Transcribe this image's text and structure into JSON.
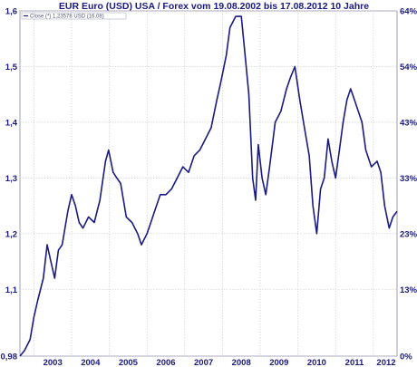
{
  "chart_data": {
    "type": "line",
    "title": "EUR Euro (USD) USA / Forex vom 19.08.2002 bis 17.08.2012 10 Jahre",
    "legend": {
      "text": "Close (*) 1,23578 USD (16.08)",
      "placement": "top-left"
    },
    "xlabel": "",
    "ylabel": "",
    "x_ticks": [
      "2003",
      "2004",
      "2005",
      "2006",
      "2007",
      "2008",
      "2009",
      "2010",
      "2011",
      "2012"
    ],
    "y_ticks_left": [
      "0,98",
      "1,1",
      "1,2",
      "1,3",
      "1,4",
      "1,5",
      "1,6"
    ],
    "y_ticks_right": [
      "0%",
      "13%",
      "23%",
      "33%",
      "43%",
      "54%",
      "64%"
    ],
    "ylim": [
      0.98,
      1.6
    ],
    "xlim": [
      2002.63,
      2012.63
    ],
    "grid": true,
    "series": [
      {
        "name": "Close",
        "color": "#1a1a80",
        "x": [
          2002.63,
          2002.75,
          2002.9,
          2003.0,
          2003.1,
          2003.25,
          2003.35,
          2003.45,
          2003.55,
          2003.65,
          2003.75,
          2003.9,
          2004.0,
          2004.1,
          2004.2,
          2004.3,
          2004.45,
          2004.6,
          2004.75,
          2004.9,
          2004.98,
          2005.1,
          2005.2,
          2005.3,
          2005.45,
          2005.6,
          2005.75,
          2005.85,
          2006.0,
          2006.1,
          2006.2,
          2006.35,
          2006.5,
          2006.65,
          2006.8,
          2006.95,
          2007.1,
          2007.25,
          2007.4,
          2007.55,
          2007.7,
          2007.85,
          2007.95,
          2008.1,
          2008.2,
          2008.35,
          2008.5,
          2008.6,
          2008.7,
          2008.8,
          2008.88,
          2008.95,
          2009.05,
          2009.15,
          2009.25,
          2009.4,
          2009.55,
          2009.7,
          2009.8,
          2009.92,
          2010.05,
          2010.2,
          2010.3,
          2010.4,
          2010.5,
          2010.6,
          2010.7,
          2010.8,
          2010.9,
          2011.0,
          2011.1,
          2011.2,
          2011.3,
          2011.4,
          2011.5,
          2011.6,
          2011.7,
          2011.8,
          2011.95,
          2012.1,
          2012.2,
          2012.3,
          2012.42,
          2012.52,
          2012.63
        ],
        "values": [
          0.98,
          0.99,
          1.01,
          1.05,
          1.08,
          1.12,
          1.18,
          1.15,
          1.12,
          1.17,
          1.18,
          1.24,
          1.27,
          1.25,
          1.22,
          1.21,
          1.23,
          1.22,
          1.26,
          1.33,
          1.35,
          1.31,
          1.3,
          1.29,
          1.23,
          1.22,
          1.2,
          1.18,
          1.2,
          1.22,
          1.24,
          1.27,
          1.27,
          1.28,
          1.3,
          1.32,
          1.31,
          1.34,
          1.35,
          1.37,
          1.39,
          1.44,
          1.47,
          1.52,
          1.57,
          1.59,
          1.59,
          1.52,
          1.45,
          1.3,
          1.26,
          1.36,
          1.3,
          1.27,
          1.32,
          1.4,
          1.42,
          1.46,
          1.48,
          1.5,
          1.44,
          1.38,
          1.34,
          1.25,
          1.2,
          1.28,
          1.3,
          1.37,
          1.33,
          1.3,
          1.35,
          1.4,
          1.44,
          1.46,
          1.44,
          1.42,
          1.4,
          1.35,
          1.32,
          1.33,
          1.31,
          1.25,
          1.21,
          1.23,
          1.24
        ]
      }
    ]
  }
}
